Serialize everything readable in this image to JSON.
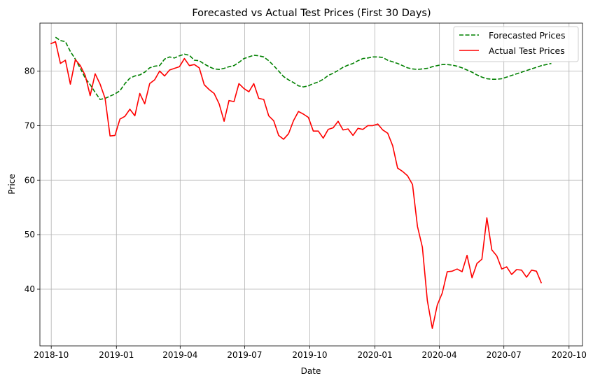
{
  "chart_data": {
    "type": "line",
    "title": "Forecasted vs Actual Test Prices (First 30 Days)",
    "xlabel": "Date",
    "ylabel": "Price",
    "grid": true,
    "legend_position": "top-right",
    "x_range": [
      "2018-09-15",
      "2020-10-20"
    ],
    "ylim": [
      29.6,
      88.8
    ],
    "x_ticks": [
      "2018-10",
      "2019-01",
      "2019-04",
      "2019-07",
      "2019-10",
      "2020-01",
      "2020-04",
      "2020-07",
      "2020-10"
    ],
    "y_ticks": [
      40,
      50,
      60,
      70,
      80
    ],
    "series": [
      {
        "name": "Forecasted Prices",
        "color": "#008000",
        "style": "dashed",
        "points": [
          [
            "2018-10-07",
            86.2
          ],
          [
            "2018-10-14",
            85.6
          ],
          [
            "2018-10-21",
            85.4
          ],
          [
            "2018-10-28",
            83.6
          ],
          [
            "2018-11-04",
            82.2
          ],
          [
            "2018-11-11",
            80.5
          ],
          [
            "2018-11-18",
            78.7
          ],
          [
            "2018-11-25",
            77.5
          ],
          [
            "2018-12-02",
            76.1
          ],
          [
            "2018-12-09",
            74.8
          ],
          [
            "2018-12-16",
            75.0
          ],
          [
            "2018-12-23",
            75.4
          ],
          [
            "2018-12-30",
            75.8
          ],
          [
            "2019-01-06",
            76.4
          ],
          [
            "2019-01-13",
            77.7
          ],
          [
            "2019-01-20",
            78.7
          ],
          [
            "2019-01-27",
            79.1
          ],
          [
            "2019-02-03",
            79.3
          ],
          [
            "2019-02-10",
            79.8
          ],
          [
            "2019-02-17",
            80.6
          ],
          [
            "2019-02-24",
            80.9
          ],
          [
            "2019-03-03",
            81.0
          ],
          [
            "2019-03-10",
            82.2
          ],
          [
            "2019-03-17",
            82.6
          ],
          [
            "2019-03-24",
            82.4
          ],
          [
            "2019-03-31",
            82.8
          ],
          [
            "2019-04-07",
            83.1
          ],
          [
            "2019-04-14",
            82.9
          ],
          [
            "2019-04-21",
            82.0
          ],
          [
            "2019-04-28",
            81.9
          ],
          [
            "2019-05-05",
            81.3
          ],
          [
            "2019-05-12",
            80.8
          ],
          [
            "2019-05-19",
            80.4
          ],
          [
            "2019-05-26",
            80.3
          ],
          [
            "2019-06-02",
            80.5
          ],
          [
            "2019-06-09",
            80.8
          ],
          [
            "2019-06-16",
            81.0
          ],
          [
            "2019-06-23",
            81.6
          ],
          [
            "2019-06-30",
            82.3
          ],
          [
            "2019-07-07",
            82.6
          ],
          [
            "2019-07-14",
            82.9
          ],
          [
            "2019-07-21",
            82.8
          ],
          [
            "2019-07-28",
            82.6
          ],
          [
            "2019-08-04",
            81.9
          ],
          [
            "2019-08-11",
            81.0
          ],
          [
            "2019-08-18",
            80.0
          ],
          [
            "2019-08-25",
            79.0
          ],
          [
            "2019-09-01",
            78.4
          ],
          [
            "2019-09-08",
            77.9
          ],
          [
            "2019-09-15",
            77.3
          ],
          [
            "2019-09-22",
            77.1
          ],
          [
            "2019-09-29",
            77.3
          ],
          [
            "2019-10-06",
            77.7
          ],
          [
            "2019-10-13",
            78.0
          ],
          [
            "2019-10-20",
            78.5
          ],
          [
            "2019-10-27",
            79.2
          ],
          [
            "2019-11-03",
            79.6
          ],
          [
            "2019-11-10",
            80.1
          ],
          [
            "2019-11-17",
            80.7
          ],
          [
            "2019-11-24",
            81.1
          ],
          [
            "2019-12-01",
            81.4
          ],
          [
            "2019-12-08",
            81.9
          ],
          [
            "2019-12-15",
            82.3
          ],
          [
            "2019-12-22",
            82.4
          ],
          [
            "2019-12-29",
            82.6
          ],
          [
            "2020-01-05",
            82.6
          ],
          [
            "2020-01-12",
            82.5
          ],
          [
            "2020-01-19",
            82.0
          ],
          [
            "2020-01-26",
            81.7
          ],
          [
            "2020-02-02",
            81.4
          ],
          [
            "2020-02-09",
            81.0
          ],
          [
            "2020-02-16",
            80.6
          ],
          [
            "2020-02-23",
            80.4
          ],
          [
            "2020-03-01",
            80.3
          ],
          [
            "2020-03-08",
            80.4
          ],
          [
            "2020-03-15",
            80.5
          ],
          [
            "2020-03-22",
            80.8
          ],
          [
            "2020-03-29",
            81.0
          ],
          [
            "2020-04-05",
            81.2
          ],
          [
            "2020-04-12",
            81.2
          ],
          [
            "2020-04-19",
            81.1
          ],
          [
            "2020-04-26",
            80.9
          ],
          [
            "2020-05-03",
            80.6
          ],
          [
            "2020-05-10",
            80.2
          ],
          [
            "2020-05-17",
            79.8
          ],
          [
            "2020-05-24",
            79.3
          ],
          [
            "2020-05-31",
            78.9
          ],
          [
            "2020-06-07",
            78.6
          ],
          [
            "2020-06-14",
            78.5
          ],
          [
            "2020-06-21",
            78.5
          ],
          [
            "2020-06-28",
            78.6
          ],
          [
            "2020-07-05",
            78.9
          ],
          [
            "2020-07-12",
            79.2
          ],
          [
            "2020-07-19",
            79.5
          ],
          [
            "2020-07-26",
            79.8
          ],
          [
            "2020-08-02",
            80.1
          ],
          [
            "2020-08-09",
            80.4
          ],
          [
            "2020-08-16",
            80.7
          ],
          [
            "2020-08-23",
            81.0
          ],
          [
            "2020-08-30",
            81.2
          ],
          [
            "2020-09-06",
            81.4
          ]
        ]
      },
      {
        "name": "Actual Test Prices",
        "color": "#ff0000",
        "style": "solid",
        "points": [
          [
            "2018-09-30",
            85.0
          ],
          [
            "2018-10-07",
            85.4
          ],
          [
            "2018-10-14",
            81.4
          ],
          [
            "2018-10-21",
            82.0
          ],
          [
            "2018-10-28",
            77.6
          ],
          [
            "2018-11-04",
            82.1
          ],
          [
            "2018-11-11",
            81.0
          ],
          [
            "2018-11-18",
            79.2
          ],
          [
            "2018-11-25",
            75.5
          ],
          [
            "2018-12-02",
            79.5
          ],
          [
            "2018-12-09",
            77.6
          ],
          [
            "2018-12-16",
            75.0
          ],
          [
            "2018-12-23",
            68.1
          ],
          [
            "2018-12-30",
            68.2
          ],
          [
            "2019-01-06",
            71.2
          ],
          [
            "2019-01-13",
            71.7
          ],
          [
            "2019-01-20",
            73.0
          ],
          [
            "2019-01-27",
            71.8
          ],
          [
            "2019-02-03",
            75.9
          ],
          [
            "2019-02-10",
            74.0
          ],
          [
            "2019-02-17",
            77.7
          ],
          [
            "2019-02-24",
            78.4
          ],
          [
            "2019-03-03",
            80.0
          ],
          [
            "2019-03-10",
            79.1
          ],
          [
            "2019-03-17",
            80.2
          ],
          [
            "2019-03-24",
            80.5
          ],
          [
            "2019-03-31",
            80.8
          ],
          [
            "2019-04-07",
            82.3
          ],
          [
            "2019-04-14",
            81.0
          ],
          [
            "2019-04-21",
            81.2
          ],
          [
            "2019-04-28",
            80.6
          ],
          [
            "2019-05-05",
            77.5
          ],
          [
            "2019-05-12",
            76.6
          ],
          [
            "2019-05-19",
            75.9
          ],
          [
            "2019-05-26",
            74.0
          ],
          [
            "2019-06-02",
            70.8
          ],
          [
            "2019-06-09",
            74.6
          ],
          [
            "2019-06-16",
            74.4
          ],
          [
            "2019-06-23",
            77.7
          ],
          [
            "2019-06-30",
            76.8
          ],
          [
            "2019-07-07",
            76.2
          ],
          [
            "2019-07-14",
            77.7
          ],
          [
            "2019-07-21",
            75.0
          ],
          [
            "2019-07-28",
            74.8
          ],
          [
            "2019-08-04",
            71.8
          ],
          [
            "2019-08-11",
            70.9
          ],
          [
            "2019-08-18",
            68.2
          ],
          [
            "2019-08-25",
            67.5
          ],
          [
            "2019-09-01",
            68.5
          ],
          [
            "2019-09-08",
            70.9
          ],
          [
            "2019-09-15",
            72.6
          ],
          [
            "2019-09-22",
            72.1
          ],
          [
            "2019-09-29",
            71.5
          ],
          [
            "2019-10-06",
            69.0
          ],
          [
            "2019-10-13",
            69.0
          ],
          [
            "2019-10-20",
            67.7
          ],
          [
            "2019-10-27",
            69.3
          ],
          [
            "2019-11-03",
            69.6
          ],
          [
            "2019-11-10",
            70.8
          ],
          [
            "2019-11-17",
            69.2
          ],
          [
            "2019-11-24",
            69.4
          ],
          [
            "2019-12-01",
            68.2
          ],
          [
            "2019-12-08",
            69.5
          ],
          [
            "2019-12-15",
            69.3
          ],
          [
            "2019-12-22",
            70.0
          ],
          [
            "2019-12-29",
            70.0
          ],
          [
            "2020-01-05",
            70.3
          ],
          [
            "2020-01-12",
            69.2
          ],
          [
            "2020-01-19",
            68.6
          ],
          [
            "2020-01-26",
            66.3
          ],
          [
            "2020-02-02",
            62.2
          ],
          [
            "2020-02-09",
            61.6
          ],
          [
            "2020-02-16",
            60.8
          ],
          [
            "2020-02-23",
            59.2
          ],
          [
            "2020-03-01",
            51.5
          ],
          [
            "2020-03-08",
            47.7
          ],
          [
            "2020-03-15",
            37.9
          ],
          [
            "2020-03-22",
            32.8
          ],
          [
            "2020-03-29",
            37.1
          ],
          [
            "2020-04-05",
            39.3
          ],
          [
            "2020-04-12",
            43.2
          ],
          [
            "2020-04-19",
            43.3
          ],
          [
            "2020-04-26",
            43.7
          ],
          [
            "2020-05-03",
            43.2
          ],
          [
            "2020-05-10",
            46.2
          ],
          [
            "2020-05-17",
            42.1
          ],
          [
            "2020-05-24",
            44.7
          ],
          [
            "2020-05-31",
            45.5
          ],
          [
            "2020-06-07",
            53.1
          ],
          [
            "2020-06-14",
            47.2
          ],
          [
            "2020-06-21",
            46.1
          ],
          [
            "2020-06-28",
            43.7
          ],
          [
            "2020-07-05",
            44.1
          ],
          [
            "2020-07-12",
            42.7
          ],
          [
            "2020-07-19",
            43.6
          ],
          [
            "2020-07-26",
            43.5
          ],
          [
            "2020-08-02",
            42.2
          ],
          [
            "2020-08-09",
            43.5
          ],
          [
            "2020-08-16",
            43.3
          ],
          [
            "2020-08-23",
            41.1
          ]
        ]
      }
    ]
  }
}
